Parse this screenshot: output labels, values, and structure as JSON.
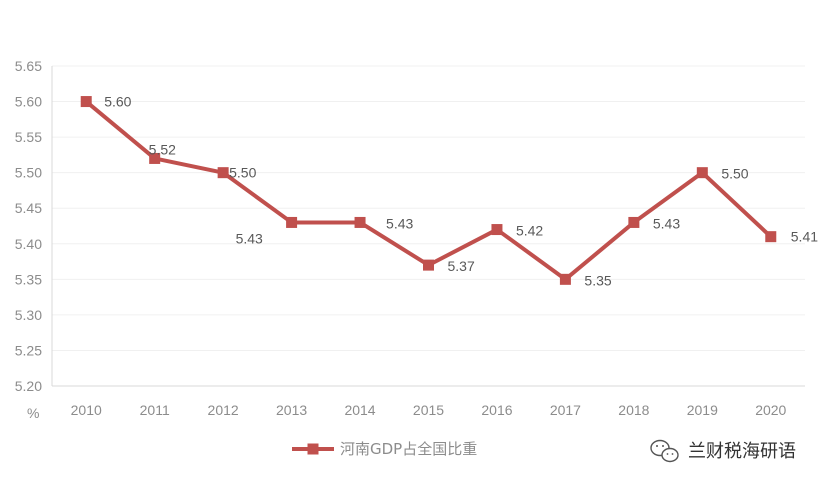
{
  "chart_data": {
    "type": "line",
    "x": [
      "2010",
      "2011",
      "2012",
      "2013",
      "2014",
      "2015",
      "2016",
      "2017",
      "2018",
      "2019",
      "2020"
    ],
    "series": [
      {
        "name": "河南GDP占全国比重",
        "values": [
          5.6,
          5.52,
          5.5,
          5.43,
          5.43,
          5.37,
          5.42,
          5.35,
          5.43,
          5.5,
          5.41
        ],
        "labels": [
          "5.60",
          "5.52",
          "5.50",
          "5.43",
          "5.43",
          "5.37",
          "5.42",
          "5.35",
          "5.43",
          "5.50",
          "5.41"
        ]
      }
    ],
    "y_ticks": [
      "5.20",
      "5.25",
      "5.30",
      "5.35",
      "5.40",
      "5.45",
      "5.50",
      "5.55",
      "5.60",
      "5.65"
    ],
    "ylim": [
      5.2,
      5.65
    ],
    "y_unit": "%",
    "grid": true,
    "legend_position": "bottom-center",
    "color": "#c0504d"
  },
  "watermark": {
    "text": "兰财税海研语",
    "icon": "wechat-icon"
  }
}
